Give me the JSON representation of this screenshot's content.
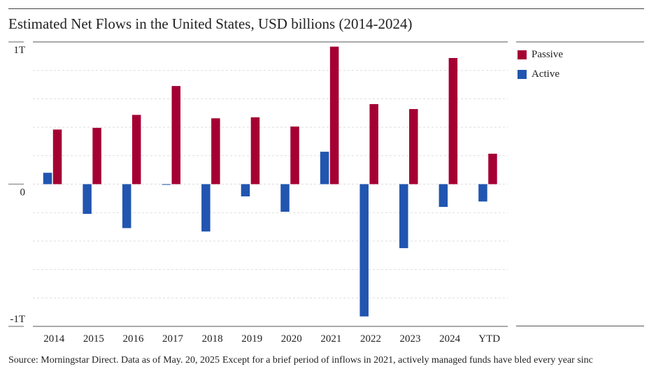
{
  "title": "Estimated Net Flows in the United States, USD billions (2014-2024)",
  "footer": {
    "source": "Source: Morningstar Direct. Data as of May. 20, 2025",
    "caption": "Except for a brief period of inflows in 2021, actively managed funds have bled every year sinc"
  },
  "chart_data": {
    "type": "bar",
    "title": "Estimated Net Flows in the United States, USD billions (2014-2024)",
    "categories": [
      "2014",
      "2015",
      "2016",
      "2017",
      "2018",
      "2019",
      "2020",
      "2021",
      "2022",
      "2023",
      "2024",
      "YTD"
    ],
    "series": [
      {
        "name": "Active",
        "color": "#2155b0",
        "values": [
          80,
          -209,
          -309,
          -5,
          -333,
          -86,
          -194,
          228,
          -930,
          -450,
          -160,
          -122
        ]
      },
      {
        "name": "Passive",
        "color": "#a50034",
        "values": [
          384,
          396,
          487,
          690,
          463,
          470,
          405,
          967,
          563,
          528,
          887,
          214
        ]
      }
    ],
    "ylim": [
      -1000,
      1000
    ],
    "yticks": [
      {
        "value": 1000,
        "label": "1T"
      },
      {
        "value": 0,
        "label": "0"
      },
      {
        "value": -1000,
        "label": "-1T"
      }
    ],
    "grid": "horizontal dotted, every 200",
    "legend": "right",
    "xlabel": "",
    "ylabel": ""
  }
}
